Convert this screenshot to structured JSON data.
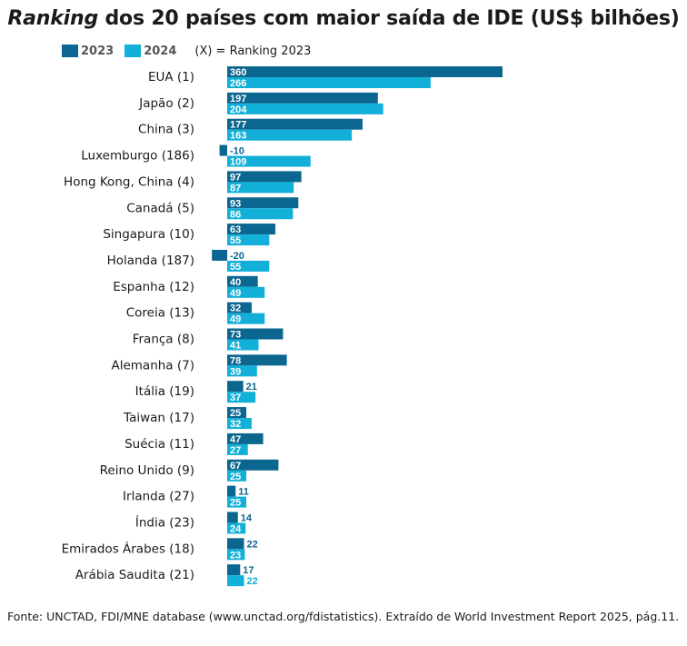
{
  "title_italic": "Ranking",
  "title_rest": " dos 20 países com maior saída de IDE (US$ bilhões)",
  "legend": {
    "items": [
      {
        "label": "2023",
        "color": "#0b6690"
      },
      {
        "label": "2024",
        "color": "#12b0d8"
      }
    ],
    "note": "(X) = Ranking 2023"
  },
  "source": "Fonte: UNCTAD, FDI/MNE database (www.unctad.org/fdistatistics). Extraído de World Investment Report 2025, pág.11.",
  "chart_data": {
    "type": "bar",
    "orientation": "horizontal",
    "categories": [
      "EUA (1)",
      "Japão (2)",
      "China (3)",
      "Luxemburgo (186)",
      "Hong Kong, China (4)",
      "Canadá (5)",
      "Singapura (10)",
      "Holanda (187)",
      "Espanha (12)",
      "Coreia (13)",
      "França (8)",
      "Alemanha (7)",
      "Itália (19)",
      "Taiwan (17)",
      "Suécia (11)",
      "Reino Unido (9)",
      "Irlanda (27)",
      "Índia (23)",
      "Emirados Árabes (18)",
      "Arábia Saudita (21)"
    ],
    "series": [
      {
        "name": "2023",
        "color": "#0b6690",
        "values": [
          360,
          197,
          177,
          -10,
          97,
          93,
          63,
          -20,
          40,
          32,
          73,
          78,
          21,
          25,
          47,
          67,
          11,
          14,
          22,
          17
        ]
      },
      {
        "name": "2024",
        "color": "#12b0d8",
        "values": [
          266,
          204,
          163,
          109,
          87,
          86,
          55,
          55,
          49,
          49,
          41,
          39,
          37,
          32,
          27,
          25,
          25,
          24,
          23,
          22
        ]
      }
    ],
    "xlim": [
      -20,
      360
    ]
  }
}
